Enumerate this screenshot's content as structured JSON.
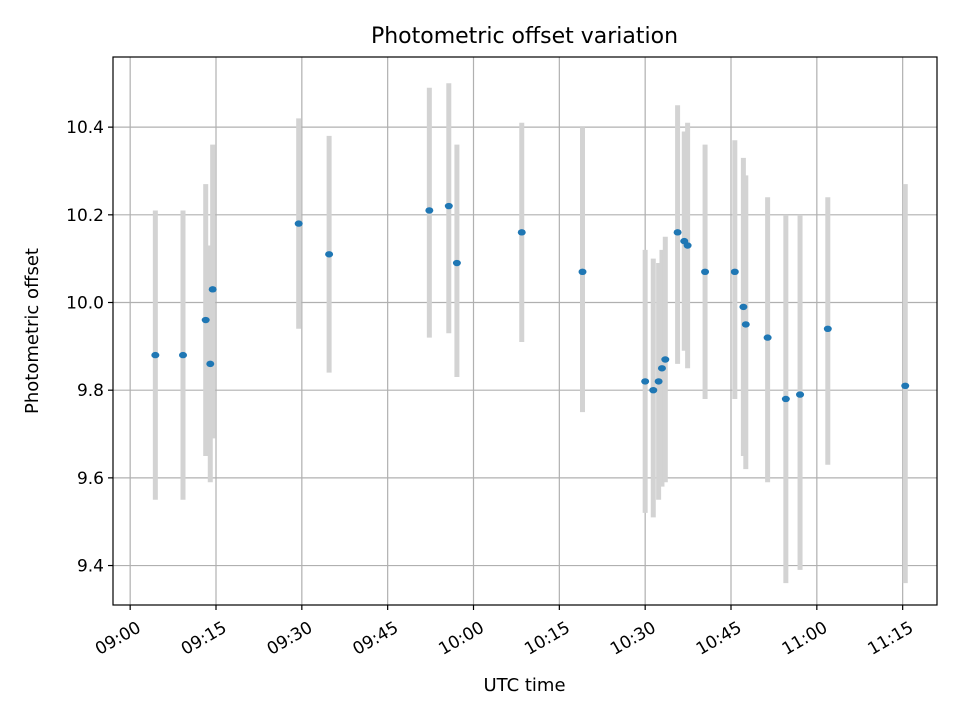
{
  "chart_data": {
    "type": "scatter",
    "title": "Photometric offset variation",
    "xlabel": "UTC time",
    "ylabel": "Photometric offset",
    "x_unit": "time of day (HH:MM, UTC)",
    "xlim": [
      "08:57",
      "11:21"
    ],
    "ylim": [
      9.31,
      10.56
    ],
    "grid": true,
    "error_bar_color": "#d3d3d3",
    "marker_color": "#1f77b4",
    "x_ticks": [
      "09:00",
      "09:15",
      "09:30",
      "09:45",
      "10:00",
      "10:15",
      "10:30",
      "10:45",
      "11:00",
      "11:15"
    ],
    "y_ticks": [
      "9.4",
      "9.6",
      "9.8",
      "10.0",
      "10.2",
      "10.4"
    ],
    "points": [
      {
        "t": "09:04:24",
        "y": 9.88,
        "lo": 9.55,
        "hi": 10.21
      },
      {
        "t": "09:09:14",
        "y": 9.88,
        "lo": 9.55,
        "hi": 10.21
      },
      {
        "t": "09:13:12",
        "y": 9.96,
        "lo": 9.65,
        "hi": 10.27
      },
      {
        "t": "09:14:00",
        "y": 9.86,
        "lo": 9.59,
        "hi": 10.13
      },
      {
        "t": "09:14:25",
        "y": 10.03,
        "lo": 9.69,
        "hi": 10.36
      },
      {
        "t": "09:29:27",
        "y": 10.18,
        "lo": 9.94,
        "hi": 10.42
      },
      {
        "t": "09:34:46",
        "y": 10.11,
        "lo": 9.84,
        "hi": 10.38
      },
      {
        "t": "09:52:17",
        "y": 10.21,
        "lo": 9.92,
        "hi": 10.49
      },
      {
        "t": "09:55:41",
        "y": 10.22,
        "lo": 9.93,
        "hi": 10.5
      },
      {
        "t": "09:57:06",
        "y": 10.09,
        "lo": 9.83,
        "hi": 10.36
      },
      {
        "t": "10:08:26",
        "y": 10.16,
        "lo": 9.91,
        "hi": 10.41
      },
      {
        "t": "10:19:03",
        "y": 10.07,
        "lo": 9.75,
        "hi": 10.4
      },
      {
        "t": "10:30:00",
        "y": 9.82,
        "lo": 9.52,
        "hi": 10.12
      },
      {
        "t": "10:31:25",
        "y": 9.8,
        "lo": 9.51,
        "hi": 10.1
      },
      {
        "t": "10:32:21",
        "y": 9.82,
        "lo": 9.55,
        "hi": 10.09
      },
      {
        "t": "10:32:56",
        "y": 9.85,
        "lo": 9.58,
        "hi": 10.12
      },
      {
        "t": "10:33:31",
        "y": 9.87,
        "lo": 9.59,
        "hi": 10.15
      },
      {
        "t": "10:35:40",
        "y": 10.16,
        "lo": 9.86,
        "hi": 10.45
      },
      {
        "t": "10:36:50",
        "y": 10.14,
        "lo": 9.89,
        "hi": 10.39
      },
      {
        "t": "10:37:25",
        "y": 10.13,
        "lo": 9.85,
        "hi": 10.41
      },
      {
        "t": "10:40:28",
        "y": 10.07,
        "lo": 9.78,
        "hi": 10.36
      },
      {
        "t": "10:45:40",
        "y": 10.07,
        "lo": 9.78,
        "hi": 10.37
      },
      {
        "t": "10:47:10",
        "y": 9.99,
        "lo": 9.65,
        "hi": 10.33
      },
      {
        "t": "10:47:35",
        "y": 9.95,
        "lo": 9.62,
        "hi": 10.29
      },
      {
        "t": "10:51:24",
        "y": 9.92,
        "lo": 9.59,
        "hi": 10.24
      },
      {
        "t": "10:54:35",
        "y": 9.78,
        "lo": 9.36,
        "hi": 10.2
      },
      {
        "t": "10:57:04",
        "y": 9.79,
        "lo": 9.39,
        "hi": 10.2
      },
      {
        "t": "11:01:55",
        "y": 9.94,
        "lo": 9.63,
        "hi": 10.24
      },
      {
        "t": "11:15:27",
        "y": 9.81,
        "lo": 9.36,
        "hi": 10.27
      }
    ]
  }
}
